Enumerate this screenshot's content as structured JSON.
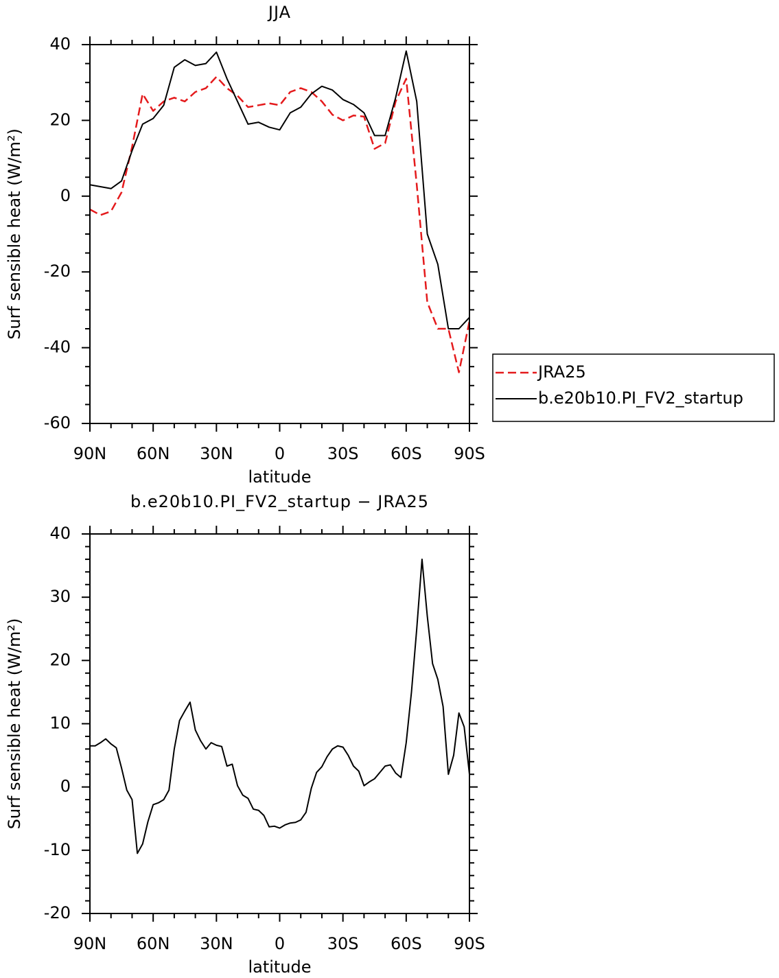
{
  "chart_data": [
    {
      "type": "line",
      "title": "JJA",
      "xlabel": "latitude",
      "ylabel": "Surf sensible heat (W/m²)",
      "x": [
        90,
        85,
        80,
        75,
        70,
        65,
        60,
        55,
        50,
        45,
        40,
        35,
        30,
        25,
        20,
        15,
        10,
        5,
        0,
        -5,
        -10,
        -15,
        -20,
        -25,
        -30,
        -35,
        -40,
        -45,
        -50,
        -55,
        -60,
        -65,
        -70,
        -75,
        -80,
        -85,
        -90
      ],
      "series": [
        {
          "name": "JRA25",
          "color": "#e41a1c",
          "dash": "dashed",
          "values": [
            -3.5,
            -5,
            -4,
            1,
            13,
            27,
            22.5,
            25,
            26,
            25,
            27.5,
            28.5,
            31.5,
            28.5,
            26.5,
            23.5,
            24,
            24.5,
            24,
            27.5,
            28.5,
            27.5,
            25,
            21.5,
            20,
            21.3,
            21,
            12.5,
            14,
            25,
            31,
            3,
            -28,
            -35,
            -35,
            -46.5,
            -33
          ]
        },
        {
          "name": "b.e20b10.PI_FV2_startup",
          "color": "#000000",
          "dash": "solid",
          "values": [
            3,
            2.5,
            2,
            4,
            12,
            19,
            20.5,
            24,
            34,
            36,
            34.5,
            35,
            38,
            31,
            25,
            19,
            19.5,
            18.2,
            17.5,
            22,
            23.5,
            27,
            29,
            28,
            25.5,
            24.2,
            22,
            16,
            16,
            26,
            38.3,
            25,
            -10,
            -18,
            -35,
            -35,
            -32
          ]
        }
      ],
      "xlim": [
        90,
        -90
      ],
      "xticks": [
        {
          "value": 90,
          "label": "90N"
        },
        {
          "value": 60,
          "label": "60N"
        },
        {
          "value": 30,
          "label": "30N"
        },
        0,
        {
          "value": -30,
          "label": "30S"
        },
        {
          "value": -60,
          "label": "60S"
        },
        {
          "value": -90,
          "label": "90S"
        }
      ],
      "ylim": [
        -60,
        40
      ],
      "yticks": [
        -60,
        -40,
        -20,
        0,
        20,
        40
      ],
      "minor_ticks": {
        "x": 2,
        "y": 3
      },
      "legend": "right"
    },
    {
      "type": "line",
      "title": "b.e20b10.PI_FV2_startup − JRA25",
      "xlabel": "latitude",
      "ylabel": "Surf sensible heat (W/m²)",
      "x": [
        90,
        87.5,
        85,
        82.5,
        80,
        77.5,
        75,
        72.5,
        70,
        67.5,
        65,
        62.5,
        60,
        57.5,
        55,
        52.5,
        50,
        47.5,
        45,
        42.5,
        40,
        37.5,
        35,
        32.5,
        30,
        27.5,
        25,
        22.5,
        20,
        17.5,
        15,
        12.5,
        10,
        7.5,
        5,
        2.5,
        0,
        -2.5,
        -5,
        -7.5,
        -10,
        -12.5,
        -15,
        -17.5,
        -20,
        -22.5,
        -25,
        -27.5,
        -30,
        -32.5,
        -35,
        -37.5,
        -40,
        -42.5,
        -45,
        -47.5,
        -50,
        -52.5,
        -55,
        -57.5,
        -60,
        -62.5,
        -65,
        -67.5,
        -70,
        -72.5,
        -75,
        -77.5,
        -80,
        -82.5,
        -85,
        -87.5,
        -90
      ],
      "series": [
        {
          "color": "#000000",
          "dash": "solid",
          "values": [
            6.5,
            6.5,
            7,
            7.6,
            6.8,
            6.2,
            3,
            -0.5,
            -2,
            -10.5,
            -9,
            -5.5,
            -2.8,
            -2.5,
            -2,
            -0.5,
            6,
            10.5,
            12,
            13.4,
            9,
            7.3,
            6,
            7,
            6.6,
            6.4,
            3.3,
            3.6,
            0.2,
            -1.3,
            -1.8,
            -3.5,
            -3.7,
            -4.5,
            -6.3,
            -6.2,
            -6.5,
            -6,
            -5.7,
            -5.6,
            -5.2,
            -4,
            -0.2,
            2.3,
            3.2,
            4.8,
            6,
            6.5,
            6.3,
            5,
            3.3,
            2.5,
            0.2,
            0.8,
            1.3,
            2.3,
            3.3,
            3.5,
            2.2,
            1.5,
            7,
            15,
            25,
            36,
            27,
            19.5,
            17,
            12.7,
            2,
            5,
            11.7,
            9.5,
            2
          ]
        }
      ],
      "xlim": [
        90,
        -90
      ],
      "xticks": [
        {
          "value": 90,
          "label": "90N"
        },
        {
          "value": 60,
          "label": "60N"
        },
        {
          "value": 30,
          "label": "30N"
        },
        0,
        {
          "value": -30,
          "label": "30S"
        },
        {
          "value": -60,
          "label": "60S"
        },
        {
          "value": -90,
          "label": "90S"
        }
      ],
      "ylim": [
        -20,
        40
      ],
      "yticks": [
        -20,
        -10,
        0,
        10,
        20,
        30,
        40
      ],
      "minor_ticks": {
        "x": 2,
        "y": 4
      }
    }
  ]
}
